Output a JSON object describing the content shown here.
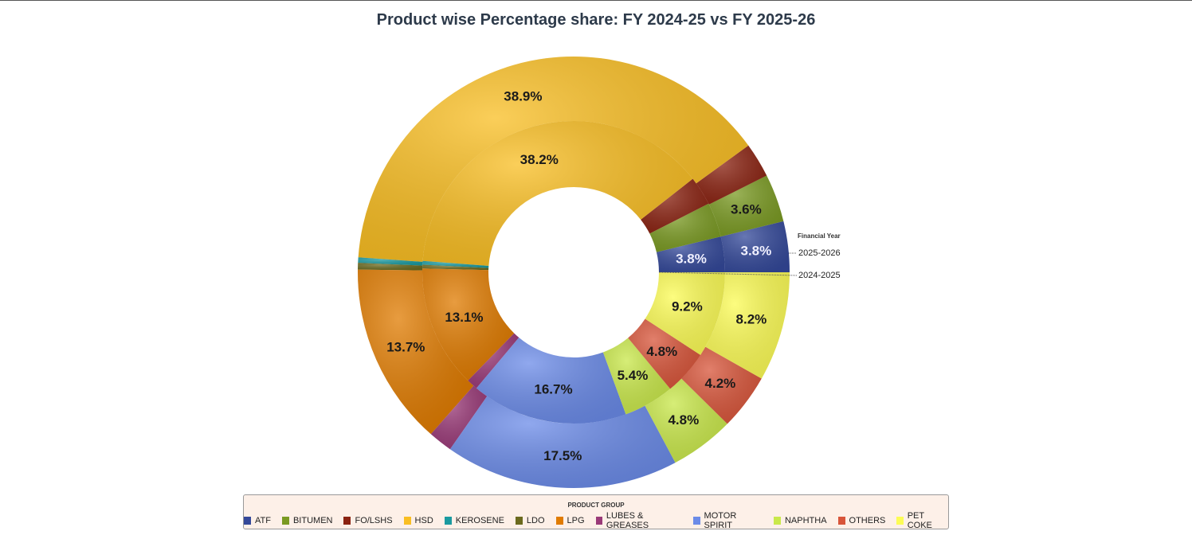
{
  "chart_data": {
    "type": "pie",
    "subtype": "doughnut",
    "title": "Product wise Percentage share: FY 2024-25 vs FY 2025-26",
    "series_legend_title": "Financial Year",
    "legend_title": "PRODUCT GROUP",
    "legend_position": "bottom",
    "categories": [
      "ATF",
      "BITUMEN",
      "FO/LSHS",
      "HSD",
      "KEROSENE",
      "LDO",
      "LPG",
      "LUBES & GREASES",
      "MOTOR SPIRIT",
      "NAPHTHA",
      "OTHERS",
      "PET COKE"
    ],
    "colors": [
      "#34499a",
      "#7a9a22",
      "#8b2312",
      "#f9be22",
      "#1a9aa0",
      "#6b6a1e",
      "#e07b00",
      "#9a3a78",
      "#6b8be8",
      "#c9e84a",
      "#d8553a",
      "#fcfc55"
    ],
    "series": [
      {
        "name": "2025-2026",
        "ring": "outer",
        "values": [
          3.8,
          3.6,
          2.6,
          38.9,
          0.4,
          0.5,
          13.7,
          1.8,
          17.5,
          4.8,
          4.2,
          8.2
        ],
        "labels": [
          "3.8%",
          "3.6%",
          "",
          "38.9%",
          "",
          "",
          "13.7%",
          "",
          "17.5%",
          "4.8%",
          "4.2%",
          "8.2%"
        ]
      },
      {
        "name": "2024-2025",
        "ring": "inner",
        "values": [
          3.8,
          3.7,
          3.1,
          38.2,
          0.4,
          0.4,
          13.1,
          1.2,
          16.7,
          5.4,
          4.8,
          9.2
        ],
        "labels": [
          "3.8%",
          "",
          "",
          "38.2%",
          "",
          "",
          "13.1%",
          "",
          "16.7%",
          "5.4%",
          "4.8%",
          "9.2%"
        ]
      }
    ]
  }
}
